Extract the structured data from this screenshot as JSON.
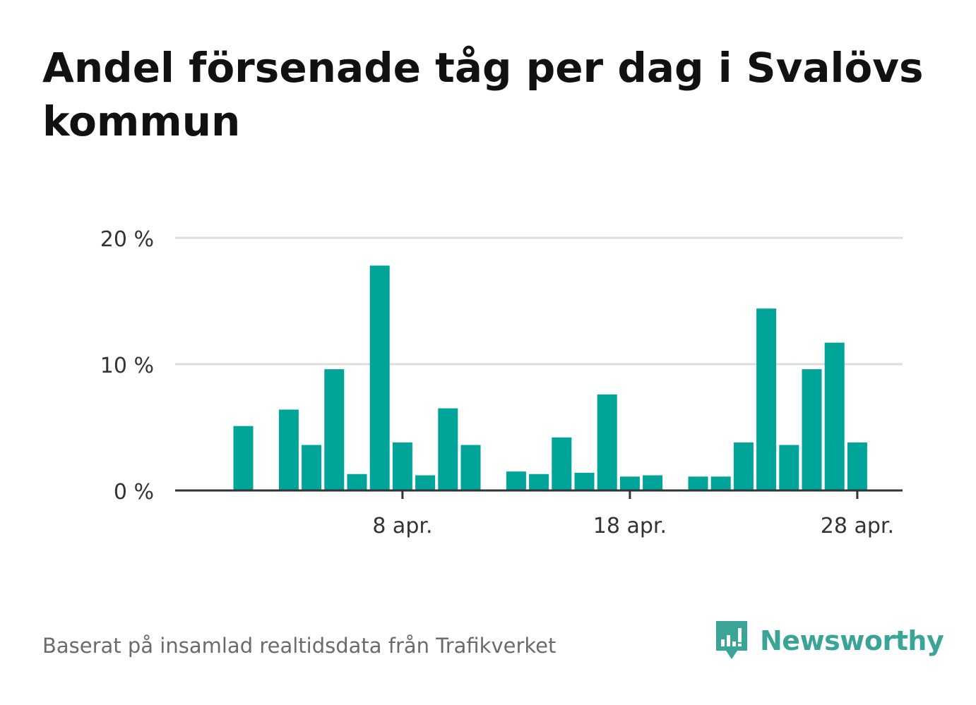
{
  "title": "Andel försenade tåg per dag i Svalövs kommun",
  "footer": "Baserat på insamlad realtidsdata från Trafikverket",
  "brand": "Newsworthy",
  "colors": {
    "bar": "#00a499",
    "grid": "#dddddd",
    "axis": "#333333",
    "brand": "#3aa597"
  },
  "chart_data": {
    "type": "bar",
    "categories": [
      "1 apr.",
      "2 apr.",
      "3 apr.",
      "4 apr.",
      "5 apr.",
      "6 apr.",
      "7 apr.",
      "8 apr.",
      "9 apr.",
      "10 apr.",
      "11 apr.",
      "12 apr.",
      "13 apr.",
      "14 apr.",
      "15 apr.",
      "16 apr.",
      "17 apr.",
      "18 apr.",
      "19 apr.",
      "20 apr.",
      "21 apr.",
      "22 apr.",
      "23 apr.",
      "24 apr.",
      "25 apr.",
      "26 apr.",
      "27 apr.",
      "28 apr.",
      "29 apr."
    ],
    "values": [
      5.1,
      null,
      6.4,
      3.6,
      9.6,
      1.3,
      17.8,
      3.8,
      1.2,
      6.5,
      3.6,
      null,
      1.5,
      1.3,
      4.2,
      1.4,
      7.6,
      1.1,
      1.2,
      null,
      1.1,
      1.1,
      3.8,
      14.4,
      3.6,
      9.6,
      11.7,
      3.8,
      null
    ],
    "x_tick_labels": [
      "8 apr.",
      "18 apr.",
      "28 apr."
    ],
    "y_tick_labels": [
      "0 %",
      "10 %",
      "20 %"
    ],
    "y_ticks": [
      0,
      10,
      20
    ],
    "ylim": [
      0,
      20
    ],
    "grid": true
  }
}
